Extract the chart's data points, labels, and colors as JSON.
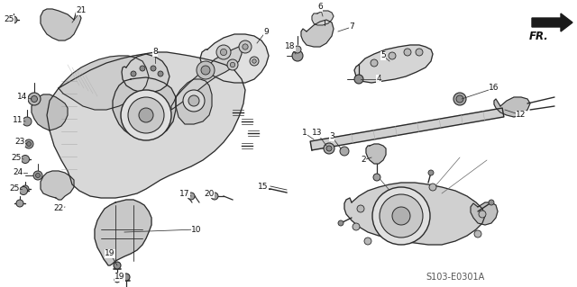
{
  "bg_color": "#ffffff",
  "line_color": "#2a2a2a",
  "text_color": "#1a1a1a",
  "watermark": "S103-E0301A",
  "fr_label": "FR.",
  "figsize": [
    6.4,
    3.19
  ],
  "dpi": 100,
  "labels": [
    [
      25,
      14,
      23,
      "left"
    ],
    [
      21,
      85,
      14,
      "right"
    ],
    [
      8,
      175,
      65,
      "right"
    ],
    [
      9,
      290,
      38,
      "right"
    ],
    [
      18,
      323,
      55,
      "right"
    ],
    [
      6,
      352,
      10,
      "right"
    ],
    [
      7,
      388,
      35,
      "right"
    ],
    [
      5,
      422,
      68,
      "right"
    ],
    [
      4,
      418,
      90,
      "right"
    ],
    [
      16,
      543,
      100,
      "right"
    ],
    [
      14,
      30,
      110,
      "right"
    ],
    [
      11,
      26,
      135,
      "right"
    ],
    [
      23,
      30,
      160,
      "right"
    ],
    [
      25,
      28,
      177,
      "right"
    ],
    [
      24,
      28,
      195,
      "right"
    ],
    [
      25,
      26,
      212,
      "right"
    ],
    [
      22,
      70,
      235,
      "right"
    ],
    [
      10,
      215,
      258,
      "right"
    ],
    [
      19,
      128,
      285,
      "right"
    ],
    [
      19,
      140,
      308,
      "right"
    ],
    [
      17,
      212,
      218,
      "right"
    ],
    [
      20,
      238,
      218,
      "right"
    ],
    [
      15,
      298,
      210,
      "right"
    ],
    [
      1,
      343,
      152,
      "right"
    ],
    [
      13,
      358,
      152,
      "right"
    ],
    [
      3,
      374,
      158,
      "right"
    ],
    [
      2,
      407,
      182,
      "right"
    ],
    [
      12,
      577,
      132,
      "right"
    ]
  ]
}
